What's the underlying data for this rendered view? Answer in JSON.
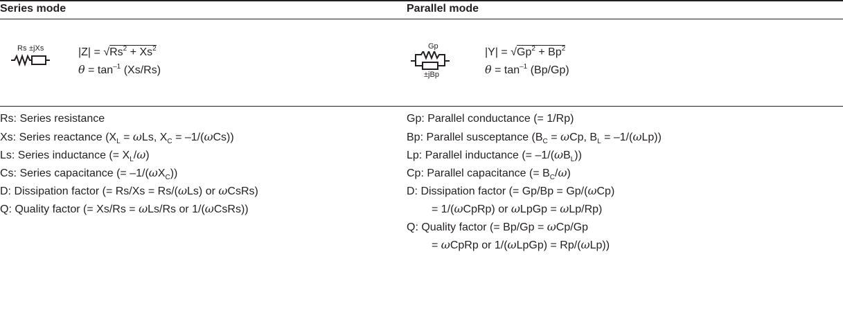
{
  "series": {
    "heading": "Series mode",
    "circuit": {
      "resistor": "Rs",
      "reactance": "±jXs"
    },
    "formulas": [
      [
        "|Z| = √",
        {
          "over": [
            "Rs",
            {
              "sup": "2"
            },
            " + Xs",
            {
              "sup": "2"
            }
          ]
        }
      ],
      [
        {
          "i": "θ"
        },
        " = tan",
        {
          "sup": "–1"
        },
        " (Xs/Rs)"
      ]
    ],
    "definitions": [
      {
        "lines": [
          [
            "Rs: Series resistance"
          ]
        ]
      },
      {
        "lines": [
          [
            "Xs: Series reactance (X",
            {
              "sub": "L"
            },
            " = ",
            {
              "i": "ω"
            },
            "Ls, X",
            {
              "sub": "C"
            },
            " = –1/(",
            {
              "i": "ω"
            },
            "Cs))"
          ]
        ]
      },
      {
        "lines": [
          [
            "Ls: Series inductance (= X",
            {
              "sub": "L"
            },
            "/",
            {
              "i": "ω"
            },
            ")"
          ]
        ]
      },
      {
        "lines": [
          [
            "Cs: Series capacitance (= –1/(",
            {
              "i": "ω"
            },
            "X",
            {
              "sub": "C"
            },
            "))"
          ]
        ]
      },
      {
        "lines": [
          [
            "D: Dissipation factor (= Rs/Xs = Rs/(",
            {
              "i": "ω"
            },
            "Ls) or ",
            {
              "i": "ω"
            },
            "CsRs)"
          ]
        ]
      },
      {
        "lines": [
          [
            "Q: Quality factor (= Xs/Rs = ",
            {
              "i": "ω"
            },
            "Ls/Rs or 1/(",
            {
              "i": "ω"
            },
            "CsRs))"
          ]
        ]
      }
    ]
  },
  "parallel": {
    "heading": "Parallel mode",
    "circuit": {
      "conductance": "Gp",
      "susceptance": "±jBp"
    },
    "formulas": [
      [
        "|Y| = √",
        {
          "over": [
            "Gp",
            {
              "sup": "2"
            },
            " + Bp",
            {
              "sup": "2"
            }
          ]
        }
      ],
      [
        {
          "i": "θ"
        },
        " = tan",
        {
          "sup": "–1"
        },
        " (Bp/Gp)"
      ]
    ],
    "definitions": [
      {
        "lines": [
          [
            "Gp: Parallel conductance (= 1/Rp)"
          ]
        ]
      },
      {
        "lines": [
          [
            "Bp: Parallel susceptance (B",
            {
              "sub": "C"
            },
            " = ",
            {
              "i": "ω"
            },
            "Cp, B",
            {
              "sub": "L"
            },
            " = –1/(",
            {
              "i": "ω"
            },
            "Lp))"
          ]
        ]
      },
      {
        "lines": [
          [
            "Lp: Parallel inductance (= –1/(",
            {
              "i": "ω"
            },
            "B",
            {
              "sub": "L"
            },
            "))"
          ]
        ]
      },
      {
        "lines": [
          [
            "Cp: Parallel capacitance (= B",
            {
              "sub": "C"
            },
            "/",
            {
              "i": "ω"
            },
            ")"
          ]
        ]
      },
      {
        "lines": [
          [
            "D: Dissipation factor (= Gp/Bp = Gp/(",
            {
              "i": "ω"
            },
            "Cp)"
          ],
          [
            "= 1/(",
            {
              "i": "ω"
            },
            "CpRp) or ",
            {
              "i": "ω"
            },
            "LpGp = ",
            {
              "i": "ω"
            },
            "Lp/Rp)"
          ]
        ]
      },
      {
        "lines": [
          [
            "Q: Quality factor (= Bp/Gp = ",
            {
              "i": "ω"
            },
            "Cp/Gp"
          ],
          [
            "= ",
            {
              "i": "ω"
            },
            "CpRp or 1/(",
            {
              "i": "ω"
            },
            "LpGp) = Rp/(",
            {
              "i": "ω"
            },
            "Lp))"
          ]
        ]
      }
    ]
  }
}
